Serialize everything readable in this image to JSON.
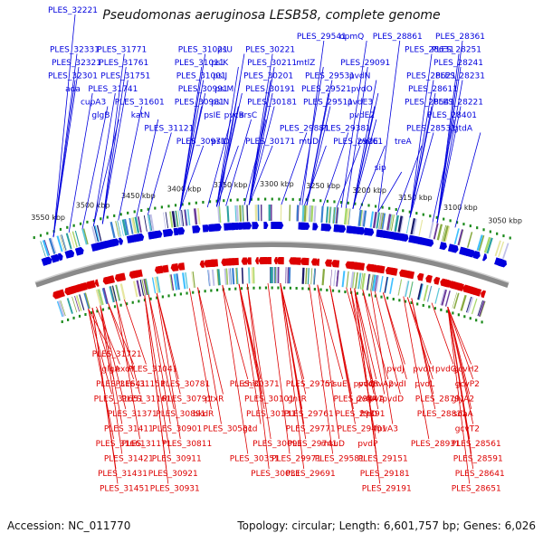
{
  "title": "Pseudomonas aeruginosa LESB58, complete genome",
  "footer": {
    "accession": "Accession: NC_011770",
    "topology": "Topology: circular; Length: 6,601,757 bp; Genes: 6,026"
  },
  "colors": {
    "forward": "#0000dd",
    "reverse": "#dd0000",
    "backbone": "#8a8a8a",
    "tick": "#1a8a1a"
  },
  "scale": {
    "labels": [
      "3550 kbp",
      "3500 kbp",
      "3450 kbp",
      "3400 kbp",
      "3350 kbp",
      "3300 kbp",
      "3250 kbp",
      "3200 kbp",
      "3150 kbp",
      "3100 kbp",
      "3050 kbp"
    ]
  },
  "forward_labels": [
    {
      "text": "PLES_32221",
      "t": 0.02,
      "row": 0
    },
    {
      "text": "PLES_32331",
      "t": 0.02,
      "row": 3
    },
    {
      "text": "PLES_32321",
      "t": 0.02,
      "row": 4
    },
    {
      "text": "PLES_32301",
      "t": 0.02,
      "row": 5
    },
    {
      "text": "ada",
      "t": 0.055,
      "row": 6
    },
    {
      "text": "cupA3",
      "t": 0.085,
      "row": 7
    },
    {
      "text": "PLES_31771",
      "t": 0.13,
      "row": 3
    },
    {
      "text": "PLES_31761",
      "t": 0.13,
      "row": 4
    },
    {
      "text": "PLES_31751",
      "t": 0.13,
      "row": 5
    },
    {
      "text": "PLES_31741",
      "t": 0.11,
      "row": 6
    },
    {
      "text": "PLES_31601",
      "t": 0.165,
      "row": 7
    },
    {
      "text": "glgB",
      "t": 0.11,
      "row": 8
    },
    {
      "text": "katN",
      "t": 0.205,
      "row": 8
    },
    {
      "text": "PLES_31121",
      "t": 0.23,
      "row": 9
    },
    {
      "text": "PLES_31021",
      "t": 0.3,
      "row": 3
    },
    {
      "text": "PLES_31011",
      "t": 0.3,
      "row": 4
    },
    {
      "text": "PLES_31001",
      "t": 0.3,
      "row": 5
    },
    {
      "text": "PLES_30991",
      "t": 0.3,
      "row": 6
    },
    {
      "text": "PLES_30981",
      "t": 0.3,
      "row": 7
    },
    {
      "text": "PLES_30971",
      "t": 0.3,
      "row": 10
    },
    {
      "text": "psU",
      "t": 0.385,
      "row": 3
    },
    {
      "text": "pslK",
      "t": 0.38,
      "row": 4
    },
    {
      "text": "psIJ",
      "t": 0.38,
      "row": 5
    },
    {
      "text": "psIM",
      "t": 0.38,
      "row": 6
    },
    {
      "text": "psIN",
      "t": 0.38,
      "row": 7
    },
    {
      "text": "psIE",
      "t": 0.36,
      "row": 8
    },
    {
      "text": "pvcB",
      "t": 0.4,
      "row": 8
    },
    {
      "text": "psIO",
      "t": 0.38,
      "row": 10
    },
    {
      "text": "PLES_30221",
      "t": 0.45,
      "row": 3
    },
    {
      "text": "PLES_30211",
      "t": 0.45,
      "row": 4
    },
    {
      "text": "PLES_30201",
      "t": 0.45,
      "row": 5
    },
    {
      "text": "PLES_30191",
      "t": 0.45,
      "row": 6
    },
    {
      "text": "PLES_30181",
      "t": 0.45,
      "row": 7
    },
    {
      "text": "arsC",
      "t": 0.44,
      "row": 8
    },
    {
      "text": "PLES_30171",
      "t": 0.45,
      "row": 10
    },
    {
      "text": "PLES_29881",
      "t": 0.52,
      "row": 9
    },
    {
      "text": "PLES_29541",
      "t": 0.565,
      "row": 2
    },
    {
      "text": "mtlZ",
      "t": 0.56,
      "row": 4
    },
    {
      "text": "PLES_29531",
      "t": 0.575,
      "row": 5
    },
    {
      "text": "PLES_29521",
      "t": 0.575,
      "row": 6
    },
    {
      "text": "PLES_29511",
      "t": 0.575,
      "row": 7
    },
    {
      "text": "PLES_29381",
      "t": 0.61,
      "row": 9
    },
    {
      "text": "mtlD",
      "t": 0.57,
      "row": 10
    },
    {
      "text": "PLES_29261",
      "t": 0.64,
      "row": 10
    },
    {
      "text": "opmQ",
      "t": 0.65,
      "row": 2
    },
    {
      "text": "PLES_29091",
      "t": 0.66,
      "row": 4
    },
    {
      "text": "pvdN",
      "t": 0.675,
      "row": 5
    },
    {
      "text": "pvdO",
      "t": 0.675,
      "row": 6
    },
    {
      "text": "pvdE3",
      "t": 0.675,
      "row": 7
    },
    {
      "text": "pvdE2",
      "t": 0.675,
      "row": 8
    },
    {
      "text": "pvdE",
      "t": 0.69,
      "row": 10
    },
    {
      "text": "PLES_28861",
      "t": 0.73,
      "row": 2
    },
    {
      "text": "sip",
      "t": 0.73,
      "row": 12
    },
    {
      "text": "treA",
      "t": 0.77,
      "row": 10
    },
    {
      "text": "PLES_28631",
      "t": 0.8,
      "row": 3
    },
    {
      "text": "PLES_28621",
      "t": 0.8,
      "row": 5
    },
    {
      "text": "PLES_28611",
      "t": 0.8,
      "row": 6
    },
    {
      "text": "PLES_28541",
      "t": 0.8,
      "row": 7
    },
    {
      "text": "PLES_28531",
      "t": 0.8,
      "row": 9
    },
    {
      "text": "PLES_28361",
      "t": 0.86,
      "row": 2
    },
    {
      "text": "PLES_28251",
      "t": 0.86,
      "row": 3
    },
    {
      "text": "PLES_28241",
      "t": 0.86,
      "row": 4
    },
    {
      "text": "PLES_28231",
      "t": 0.86,
      "row": 5
    },
    {
      "text": "PLES_28401",
      "t": 0.85,
      "row": 8
    },
    {
      "text": "PLES_28221",
      "t": 0.86,
      "row": 7
    },
    {
      "text": "gtdA",
      "t": 0.9,
      "row": 9
    }
  ],
  "reverse_labels": [
    {
      "text": "PLES_31721",
      "t": 0.05,
      "row": 0
    },
    {
      "text": "glgA",
      "t": 0.07,
      "row": 1
    },
    {
      "text": "exoY",
      "t": 0.1,
      "row": 1
    },
    {
      "text": "PLES_31641",
      "t": 0.06,
      "row": 2
    },
    {
      "text": "PLES_31651",
      "t": 0.05,
      "row": 3
    },
    {
      "text": "PLES_31151",
      "t": 0.1,
      "row": 2
    },
    {
      "text": "PLES_31041",
      "t": 0.14,
      "row": 1
    },
    {
      "text": "PLES_31161",
      "t": 0.12,
      "row": 3
    },
    {
      "text": "PLES_31371",
      "t": 0.08,
      "row": 4
    },
    {
      "text": "PLES_31411",
      "t": 0.08,
      "row": 5
    },
    {
      "text": "PLES_31171",
      "t": 0.12,
      "row": 6
    },
    {
      "text": "PLES_31661",
      "t": 0.05,
      "row": 6
    },
    {
      "text": "PLES_31421",
      "t": 0.08,
      "row": 7
    },
    {
      "text": "PLES_31431",
      "t": 0.06,
      "row": 8
    },
    {
      "text": "PLES_31451",
      "t": 0.06,
      "row": 9
    },
    {
      "text": "PLES_30781",
      "t": 0.22,
      "row": 2
    },
    {
      "text": "PLES_30791",
      "t": 0.22,
      "row": 3
    },
    {
      "text": "PLES_30891",
      "t": 0.2,
      "row": 4
    },
    {
      "text": "PLES_30901",
      "t": 0.2,
      "row": 5
    },
    {
      "text": "PLES_30811",
      "t": 0.22,
      "row": 6
    },
    {
      "text": "PLES_30911",
      "t": 0.19,
      "row": 7
    },
    {
      "text": "PLES_30921",
      "t": 0.19,
      "row": 8
    },
    {
      "text": "PLES_30931",
      "t": 0.19,
      "row": 9
    },
    {
      "text": "ptxR",
      "t": 0.32,
      "row": 3
    },
    {
      "text": "bkdR",
      "t": 0.3,
      "row": 4
    },
    {
      "text": "PLES_30531",
      "t": 0.32,
      "row": 5
    },
    {
      "text": "PLES_30371",
      "t": 0.38,
      "row": 2
    },
    {
      "text": "chiC",
      "t": 0.42,
      "row": 2
    },
    {
      "text": "PLES_30101",
      "t": 0.42,
      "row": 3
    },
    {
      "text": "PLES_30131",
      "t": 0.42,
      "row": 4
    },
    {
      "text": "gcd",
      "t": 0.42,
      "row": 5
    },
    {
      "text": "PLES_30091",
      "t": 0.44,
      "row": 6
    },
    {
      "text": "PLES_30351",
      "t": 0.38,
      "row": 7
    },
    {
      "text": "PLES_30031",
      "t": 0.44,
      "row": 8
    },
    {
      "text": "PLES_29751",
      "t": 0.52,
      "row": 2
    },
    {
      "text": "gntR",
      "t": 0.52,
      "row": 3
    },
    {
      "text": "PLES_29761",
      "t": 0.52,
      "row": 4
    },
    {
      "text": "PLES_29771",
      "t": 0.52,
      "row": 5
    },
    {
      "text": "PLES_29741",
      "t": 0.52,
      "row": 6
    },
    {
      "text": "PLES_29971",
      "t": 0.49,
      "row": 7
    },
    {
      "text": "PLES_29691",
      "t": 0.52,
      "row": 8
    },
    {
      "text": "msuE",
      "t": 0.61,
      "row": 2
    },
    {
      "text": "PLES_29441",
      "t": 0.64,
      "row": 3
    },
    {
      "text": "PLES_29391",
      "t": 0.64,
      "row": 4
    },
    {
      "text": "PLES_29401",
      "t": 0.64,
      "row": 5
    },
    {
      "text": "msuD",
      "t": 0.61,
      "row": 6
    },
    {
      "text": "PLES_29581",
      "t": 0.59,
      "row": 7
    },
    {
      "text": "pvdQ",
      "t": 0.68,
      "row": 2
    },
    {
      "text": "pvdR",
      "t": 0.7,
      "row": 2
    },
    {
      "text": "pvdA",
      "t": 0.69,
      "row": 3
    },
    {
      "text": "fpvA2",
      "t": 0.72,
      "row": 2
    },
    {
      "text": "fpvA",
      "t": 0.72,
      "row": 3
    },
    {
      "text": "ftpD",
      "t": 0.7,
      "row": 4
    },
    {
      "text": "pvdP",
      "t": 0.69,
      "row": 6
    },
    {
      "text": "PLES_29151",
      "t": 0.7,
      "row": 7
    },
    {
      "text": "PLES_29181",
      "t": 0.7,
      "row": 8
    },
    {
      "text": "PLES_29191",
      "t": 0.7,
      "row": 9
    },
    {
      "text": "pvdJ",
      "t": 0.77,
      "row": 1
    },
    {
      "text": "pvdI",
      "t": 0.77,
      "row": 2
    },
    {
      "text": "pvdD",
      "t": 0.75,
      "row": 3
    },
    {
      "text": "fpvA3",
      "t": 0.74,
      "row": 5
    },
    {
      "text": "pvdH",
      "t": 0.83,
      "row": 1
    },
    {
      "text": "pvdL",
      "t": 0.83,
      "row": 2
    },
    {
      "text": "PLES_28791",
      "t": 0.84,
      "row": 3
    },
    {
      "text": "PLES_28811",
      "t": 0.84,
      "row": 4
    },
    {
      "text": "PLES_28931",
      "t": 0.82,
      "row": 6
    },
    {
      "text": "pvdG",
      "t": 0.89,
      "row": 1
    },
    {
      "text": "gcvH2",
      "t": 0.93,
      "row": 1
    },
    {
      "text": "gcvP2",
      "t": 0.93,
      "row": 2
    },
    {
      "text": "glyA2",
      "t": 0.93,
      "row": 3
    },
    {
      "text": "sdaA",
      "t": 0.93,
      "row": 4
    },
    {
      "text": "gcvT2",
      "t": 0.93,
      "row": 5
    },
    {
      "text": "PLES_28561",
      "t": 0.93,
      "row": 6
    },
    {
      "text": "PLES_28591",
      "t": 0.93,
      "row": 7
    },
    {
      "text": "PLES_28641",
      "t": 0.93,
      "row": 8
    },
    {
      "text": "PLES_28651",
      "t": 0.93,
      "row": 9
    }
  ]
}
